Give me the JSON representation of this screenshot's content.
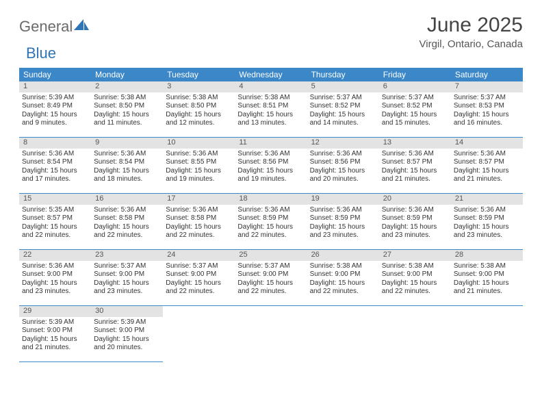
{
  "logo": {
    "general": "General",
    "blue": "Blue"
  },
  "title": "June 2025",
  "location": "Virgil, Ontario, Canada",
  "colors": {
    "header_bg": "#3b87c8",
    "header_fg": "#ffffff",
    "daynum_bg": "#e3e3e3",
    "rule": "#3b87c8",
    "logo_blue": "#2f74b5",
    "text": "#333333"
  },
  "day_headers": [
    "Sunday",
    "Monday",
    "Tuesday",
    "Wednesday",
    "Thursday",
    "Friday",
    "Saturday"
  ],
  "weeks": [
    [
      {
        "n": "1",
        "sr": "Sunrise: 5:39 AM",
        "ss": "Sunset: 8:49 PM",
        "d1": "Daylight: 15 hours",
        "d2": "and 9 minutes."
      },
      {
        "n": "2",
        "sr": "Sunrise: 5:38 AM",
        "ss": "Sunset: 8:50 PM",
        "d1": "Daylight: 15 hours",
        "d2": "and 11 minutes."
      },
      {
        "n": "3",
        "sr": "Sunrise: 5:38 AM",
        "ss": "Sunset: 8:50 PM",
        "d1": "Daylight: 15 hours",
        "d2": "and 12 minutes."
      },
      {
        "n": "4",
        "sr": "Sunrise: 5:38 AM",
        "ss": "Sunset: 8:51 PM",
        "d1": "Daylight: 15 hours",
        "d2": "and 13 minutes."
      },
      {
        "n": "5",
        "sr": "Sunrise: 5:37 AM",
        "ss": "Sunset: 8:52 PM",
        "d1": "Daylight: 15 hours",
        "d2": "and 14 minutes."
      },
      {
        "n": "6",
        "sr": "Sunrise: 5:37 AM",
        "ss": "Sunset: 8:52 PM",
        "d1": "Daylight: 15 hours",
        "d2": "and 15 minutes."
      },
      {
        "n": "7",
        "sr": "Sunrise: 5:37 AM",
        "ss": "Sunset: 8:53 PM",
        "d1": "Daylight: 15 hours",
        "d2": "and 16 minutes."
      }
    ],
    [
      {
        "n": "8",
        "sr": "Sunrise: 5:36 AM",
        "ss": "Sunset: 8:54 PM",
        "d1": "Daylight: 15 hours",
        "d2": "and 17 minutes."
      },
      {
        "n": "9",
        "sr": "Sunrise: 5:36 AM",
        "ss": "Sunset: 8:54 PM",
        "d1": "Daylight: 15 hours",
        "d2": "and 18 minutes."
      },
      {
        "n": "10",
        "sr": "Sunrise: 5:36 AM",
        "ss": "Sunset: 8:55 PM",
        "d1": "Daylight: 15 hours",
        "d2": "and 19 minutes."
      },
      {
        "n": "11",
        "sr": "Sunrise: 5:36 AM",
        "ss": "Sunset: 8:56 PM",
        "d1": "Daylight: 15 hours",
        "d2": "and 19 minutes."
      },
      {
        "n": "12",
        "sr": "Sunrise: 5:36 AM",
        "ss": "Sunset: 8:56 PM",
        "d1": "Daylight: 15 hours",
        "d2": "and 20 minutes."
      },
      {
        "n": "13",
        "sr": "Sunrise: 5:36 AM",
        "ss": "Sunset: 8:57 PM",
        "d1": "Daylight: 15 hours",
        "d2": "and 21 minutes."
      },
      {
        "n": "14",
        "sr": "Sunrise: 5:36 AM",
        "ss": "Sunset: 8:57 PM",
        "d1": "Daylight: 15 hours",
        "d2": "and 21 minutes."
      }
    ],
    [
      {
        "n": "15",
        "sr": "Sunrise: 5:35 AM",
        "ss": "Sunset: 8:57 PM",
        "d1": "Daylight: 15 hours",
        "d2": "and 22 minutes."
      },
      {
        "n": "16",
        "sr": "Sunrise: 5:36 AM",
        "ss": "Sunset: 8:58 PM",
        "d1": "Daylight: 15 hours",
        "d2": "and 22 minutes."
      },
      {
        "n": "17",
        "sr": "Sunrise: 5:36 AM",
        "ss": "Sunset: 8:58 PM",
        "d1": "Daylight: 15 hours",
        "d2": "and 22 minutes."
      },
      {
        "n": "18",
        "sr": "Sunrise: 5:36 AM",
        "ss": "Sunset: 8:59 PM",
        "d1": "Daylight: 15 hours",
        "d2": "and 22 minutes."
      },
      {
        "n": "19",
        "sr": "Sunrise: 5:36 AM",
        "ss": "Sunset: 8:59 PM",
        "d1": "Daylight: 15 hours",
        "d2": "and 23 minutes."
      },
      {
        "n": "20",
        "sr": "Sunrise: 5:36 AM",
        "ss": "Sunset: 8:59 PM",
        "d1": "Daylight: 15 hours",
        "d2": "and 23 minutes."
      },
      {
        "n": "21",
        "sr": "Sunrise: 5:36 AM",
        "ss": "Sunset: 8:59 PM",
        "d1": "Daylight: 15 hours",
        "d2": "and 23 minutes."
      }
    ],
    [
      {
        "n": "22",
        "sr": "Sunrise: 5:36 AM",
        "ss": "Sunset: 9:00 PM",
        "d1": "Daylight: 15 hours",
        "d2": "and 23 minutes."
      },
      {
        "n": "23",
        "sr": "Sunrise: 5:37 AM",
        "ss": "Sunset: 9:00 PM",
        "d1": "Daylight: 15 hours",
        "d2": "and 23 minutes."
      },
      {
        "n": "24",
        "sr": "Sunrise: 5:37 AM",
        "ss": "Sunset: 9:00 PM",
        "d1": "Daylight: 15 hours",
        "d2": "and 22 minutes."
      },
      {
        "n": "25",
        "sr": "Sunrise: 5:37 AM",
        "ss": "Sunset: 9:00 PM",
        "d1": "Daylight: 15 hours",
        "d2": "and 22 minutes."
      },
      {
        "n": "26",
        "sr": "Sunrise: 5:38 AM",
        "ss": "Sunset: 9:00 PM",
        "d1": "Daylight: 15 hours",
        "d2": "and 22 minutes."
      },
      {
        "n": "27",
        "sr": "Sunrise: 5:38 AM",
        "ss": "Sunset: 9:00 PM",
        "d1": "Daylight: 15 hours",
        "d2": "and 22 minutes."
      },
      {
        "n": "28",
        "sr": "Sunrise: 5:38 AM",
        "ss": "Sunset: 9:00 PM",
        "d1": "Daylight: 15 hours",
        "d2": "and 21 minutes."
      }
    ],
    [
      {
        "n": "29",
        "sr": "Sunrise: 5:39 AM",
        "ss": "Sunset: 9:00 PM",
        "d1": "Daylight: 15 hours",
        "d2": "and 21 minutes."
      },
      {
        "n": "30",
        "sr": "Sunrise: 5:39 AM",
        "ss": "Sunset: 9:00 PM",
        "d1": "Daylight: 15 hours",
        "d2": "and 20 minutes."
      },
      null,
      null,
      null,
      null,
      null
    ]
  ]
}
